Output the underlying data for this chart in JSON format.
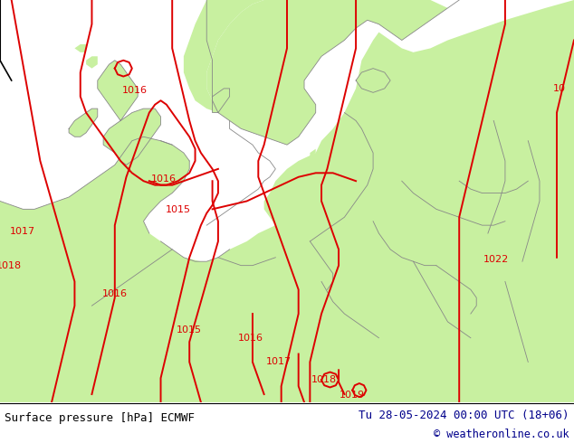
{
  "title_left": "Surface pressure [hPa] ECMWF",
  "title_right": "Tu 28-05-2024 00:00 UTC (18+06)",
  "copyright": "© weatheronline.co.uk",
  "bg_land_color": "#c8f0a0",
  "bg_sea_color": "#d0d0d0",
  "bg_outer_color": "#d0d0d0",
  "contour_color": "#dd0000",
  "border_color": "#909090",
  "text_color_left": "#000000",
  "text_color_right": "#00008b",
  "copyright_color": "#00008b",
  "footer_bg": "#ffffff",
  "figsize": [
    6.34,
    4.9
  ],
  "dpi": 100
}
